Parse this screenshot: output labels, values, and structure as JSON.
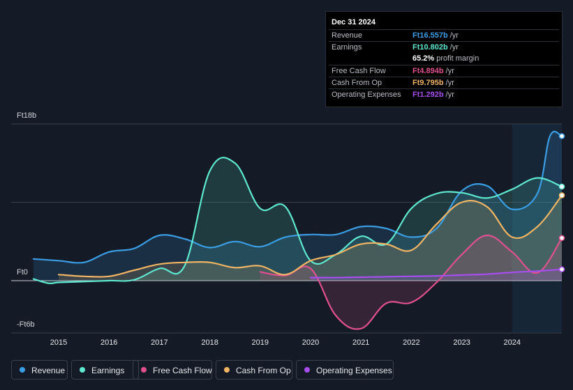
{
  "tooltip": {
    "date": "Dec 31 2024",
    "rows": [
      {
        "label": "Revenue",
        "value": "Ft16.557b",
        "unit": "/yr",
        "color": "#3b9ee4"
      },
      {
        "label": "Earnings",
        "value": "Ft10.802b",
        "unit": "/yr",
        "color": "#5de8cf"
      },
      {
        "label": "",
        "value": "65.2%",
        "unit": "profit margin",
        "color": "#ffffff"
      },
      {
        "label": "Free Cash Flow",
        "value": "Ft4.894b",
        "unit": "/yr",
        "color": "#e0508f"
      },
      {
        "label": "Cash From Op",
        "value": "Ft9.795b",
        "unit": "/yr",
        "color": "#f0b464"
      },
      {
        "label": "Operating Expenses",
        "value": "Ft1.292b",
        "unit": "/yr",
        "color": "#a74ef0"
      }
    ]
  },
  "legend": [
    {
      "label": "Revenue",
      "color": "#3b9ee4"
    },
    {
      "label": "Earnings",
      "color": "#5de8cf"
    },
    {
      "label": "Free Cash Flow",
      "color": "#e0508f"
    },
    {
      "label": "Cash From Op",
      "color": "#f0b464"
    },
    {
      "label": "Operating Expenses",
      "color": "#a74ef0"
    }
  ],
  "chart_data": {
    "type": "area",
    "title": "",
    "xlabel": "",
    "ylabel": "",
    "currency": "Ft",
    "unit": "b",
    "ylim": [
      -6,
      18
    ],
    "xlim": [
      2014.5,
      2025.0
    ],
    "y_tick_labels": [
      {
        "value": 18,
        "label": "Ft18b"
      },
      {
        "value": 0,
        "label": "Ft0"
      },
      {
        "value": -6,
        "label": "-Ft6b"
      }
    ],
    "x_ticks": [
      2015,
      2016,
      2017,
      2018,
      2019,
      2020,
      2021,
      2022,
      2023,
      2024
    ],
    "highlight_start": 2024.0,
    "series": [
      {
        "name": "Revenue",
        "color": "#3b9ee4",
        "x": [
          2014.5,
          2015.0,
          2015.5,
          2016.0,
          2016.5,
          2017.0,
          2017.5,
          2018.0,
          2018.5,
          2019.0,
          2019.5,
          2020.0,
          2020.5,
          2021.0,
          2021.5,
          2022.0,
          2022.5,
          2023.0,
          2023.5,
          2024.0,
          2024.5,
          2024.75,
          2025.0
        ],
        "values": [
          2.5,
          2.3,
          2.1,
          3.3,
          3.7,
          5.2,
          4.8,
          3.8,
          4.5,
          3.9,
          5.0,
          5.3,
          5.3,
          6.2,
          6.0,
          5.0,
          6.0,
          10.3,
          10.9,
          8.2,
          10.0,
          16.6,
          16.6
        ]
      },
      {
        "name": "Earnings",
        "color": "#5de8cf",
        "x": [
          2014.5,
          2014.8,
          2015.0,
          2015.5,
          2016.0,
          2016.5,
          2017.0,
          2017.5,
          2018.0,
          2018.5,
          2019.0,
          2019.5,
          2020.0,
          2020.5,
          2021.0,
          2021.5,
          2022.0,
          2022.5,
          2023.0,
          2023.5,
          2024.0,
          2024.5,
          2025.0
        ],
        "values": [
          0.2,
          -0.3,
          -0.2,
          -0.1,
          0.0,
          0.1,
          1.4,
          1.7,
          12.6,
          13.5,
          8.3,
          8.5,
          2.3,
          3.0,
          5.1,
          4.2,
          8.3,
          10.0,
          10.1,
          9.5,
          10.5,
          11.8,
          10.8
        ]
      },
      {
        "name": "Free Cash Flow",
        "color": "#e0508f",
        "x": [
          2019.0,
          2019.5,
          2020.0,
          2020.5,
          2021.0,
          2021.5,
          2022.0,
          2022.5,
          2023.0,
          2023.5,
          2024.0,
          2024.5,
          2025.0
        ],
        "values": [
          1.0,
          0.6,
          1.4,
          -4.0,
          -5.5,
          -2.6,
          -2.5,
          -0.2,
          3.0,
          5.2,
          3.3,
          0.9,
          4.9
        ]
      },
      {
        "name": "Cash From Op",
        "color": "#f0b464",
        "x": [
          2015.0,
          2015.5,
          2016.0,
          2016.5,
          2017.0,
          2017.5,
          2018.0,
          2018.5,
          2019.0,
          2019.5,
          2020.0,
          2020.5,
          2021.0,
          2021.5,
          2022.0,
          2022.5,
          2023.0,
          2023.5,
          2024.0,
          2024.5,
          2025.0
        ],
        "values": [
          0.7,
          0.5,
          0.5,
          1.2,
          1.9,
          2.1,
          2.1,
          1.5,
          1.7,
          0.7,
          2.3,
          3.0,
          4.2,
          4.2,
          3.5,
          6.5,
          9.0,
          8.5,
          5.0,
          6.2,
          9.8
        ]
      },
      {
        "name": "Operating Expenses",
        "color": "#a74ef0",
        "x": [
          2020.0,
          2020.5,
          2021.0,
          2021.5,
          2022.0,
          2022.5,
          2023.0,
          2023.5,
          2024.0,
          2024.5,
          2025.0
        ],
        "values": [
          0.35,
          0.35,
          0.4,
          0.45,
          0.5,
          0.55,
          0.65,
          0.75,
          0.95,
          1.1,
          1.3
        ]
      }
    ]
  }
}
